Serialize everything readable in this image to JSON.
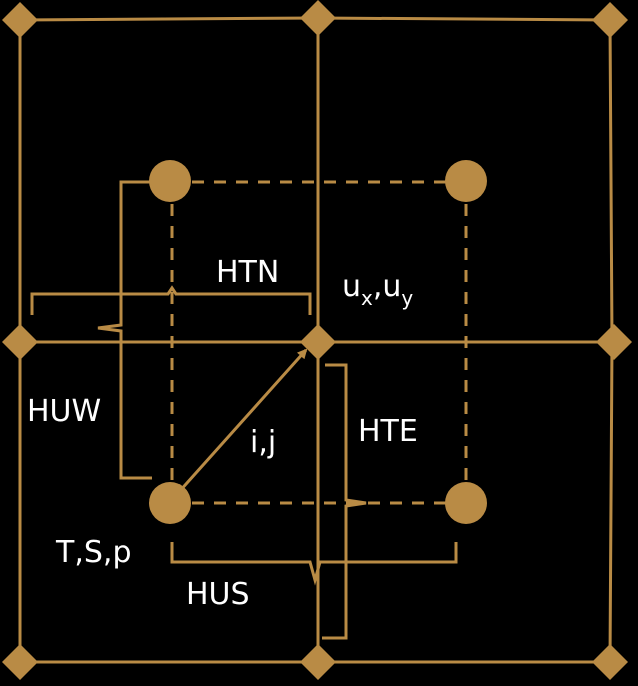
{
  "colors": {
    "background": "#000000",
    "grid": "#b98b45",
    "label": "#ffffff"
  },
  "labels": {
    "htn": "HTN",
    "huw": "HUW",
    "hte": "HTE",
    "hus": "HUS",
    "ij": "i,j",
    "tsp": "T,S,p",
    "ux_main": "u",
    "ux_sub": "x",
    "comma": ",",
    "uy_main": "u",
    "uy_sub": "y"
  },
  "icons": {
    "u_node": "diamond-node",
    "t_node": "circle-node"
  }
}
